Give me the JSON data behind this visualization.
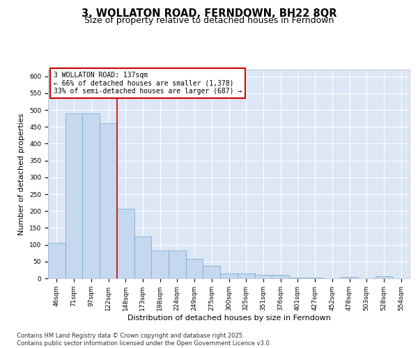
{
  "title": "3, WOLLATON ROAD, FERNDOWN, BH22 8QR",
  "subtitle": "Size of property relative to detached houses in Ferndown",
  "xlabel": "Distribution of detached houses by size in Ferndown",
  "ylabel": "Number of detached properties",
  "categories": [
    "46sqm",
    "71sqm",
    "97sqm",
    "122sqm",
    "148sqm",
    "173sqm",
    "198sqm",
    "224sqm",
    "249sqm",
    "275sqm",
    "300sqm",
    "325sqm",
    "351sqm",
    "376sqm",
    "401sqm",
    "427sqm",
    "452sqm",
    "478sqm",
    "503sqm",
    "528sqm",
    "554sqm"
  ],
  "values": [
    105,
    490,
    490,
    460,
    207,
    123,
    83,
    83,
    57,
    37,
    15,
    15,
    10,
    11,
    2,
    2,
    0,
    5,
    0,
    6,
    0
  ],
  "bar_color": "#c5d8ef",
  "bar_edge_color": "#7bafd4",
  "background_color": "#dce6f4",
  "vline_x": 3.5,
  "vline_color": "#cc0000",
  "annotation_text": "3 WOLLATON ROAD: 137sqm\n← 66% of detached houses are smaller (1,378)\n33% of semi-detached houses are larger (687) →",
  "annotation_box_facecolor": "#ffffff",
  "annotation_box_edgecolor": "#cc0000",
  "footer": "Contains HM Land Registry data © Crown copyright and database right 2025.\nContains public sector information licensed under the Open Government Licence v3.0.",
  "ylim": [
    0,
    620
  ],
  "yticks": [
    0,
    50,
    100,
    150,
    200,
    250,
    300,
    350,
    400,
    450,
    500,
    550,
    600
  ],
  "title_fontsize": 10.5,
  "subtitle_fontsize": 9,
  "tick_fontsize": 6.5,
  "label_fontsize": 8,
  "annotation_fontsize": 7,
  "footer_fontsize": 6
}
